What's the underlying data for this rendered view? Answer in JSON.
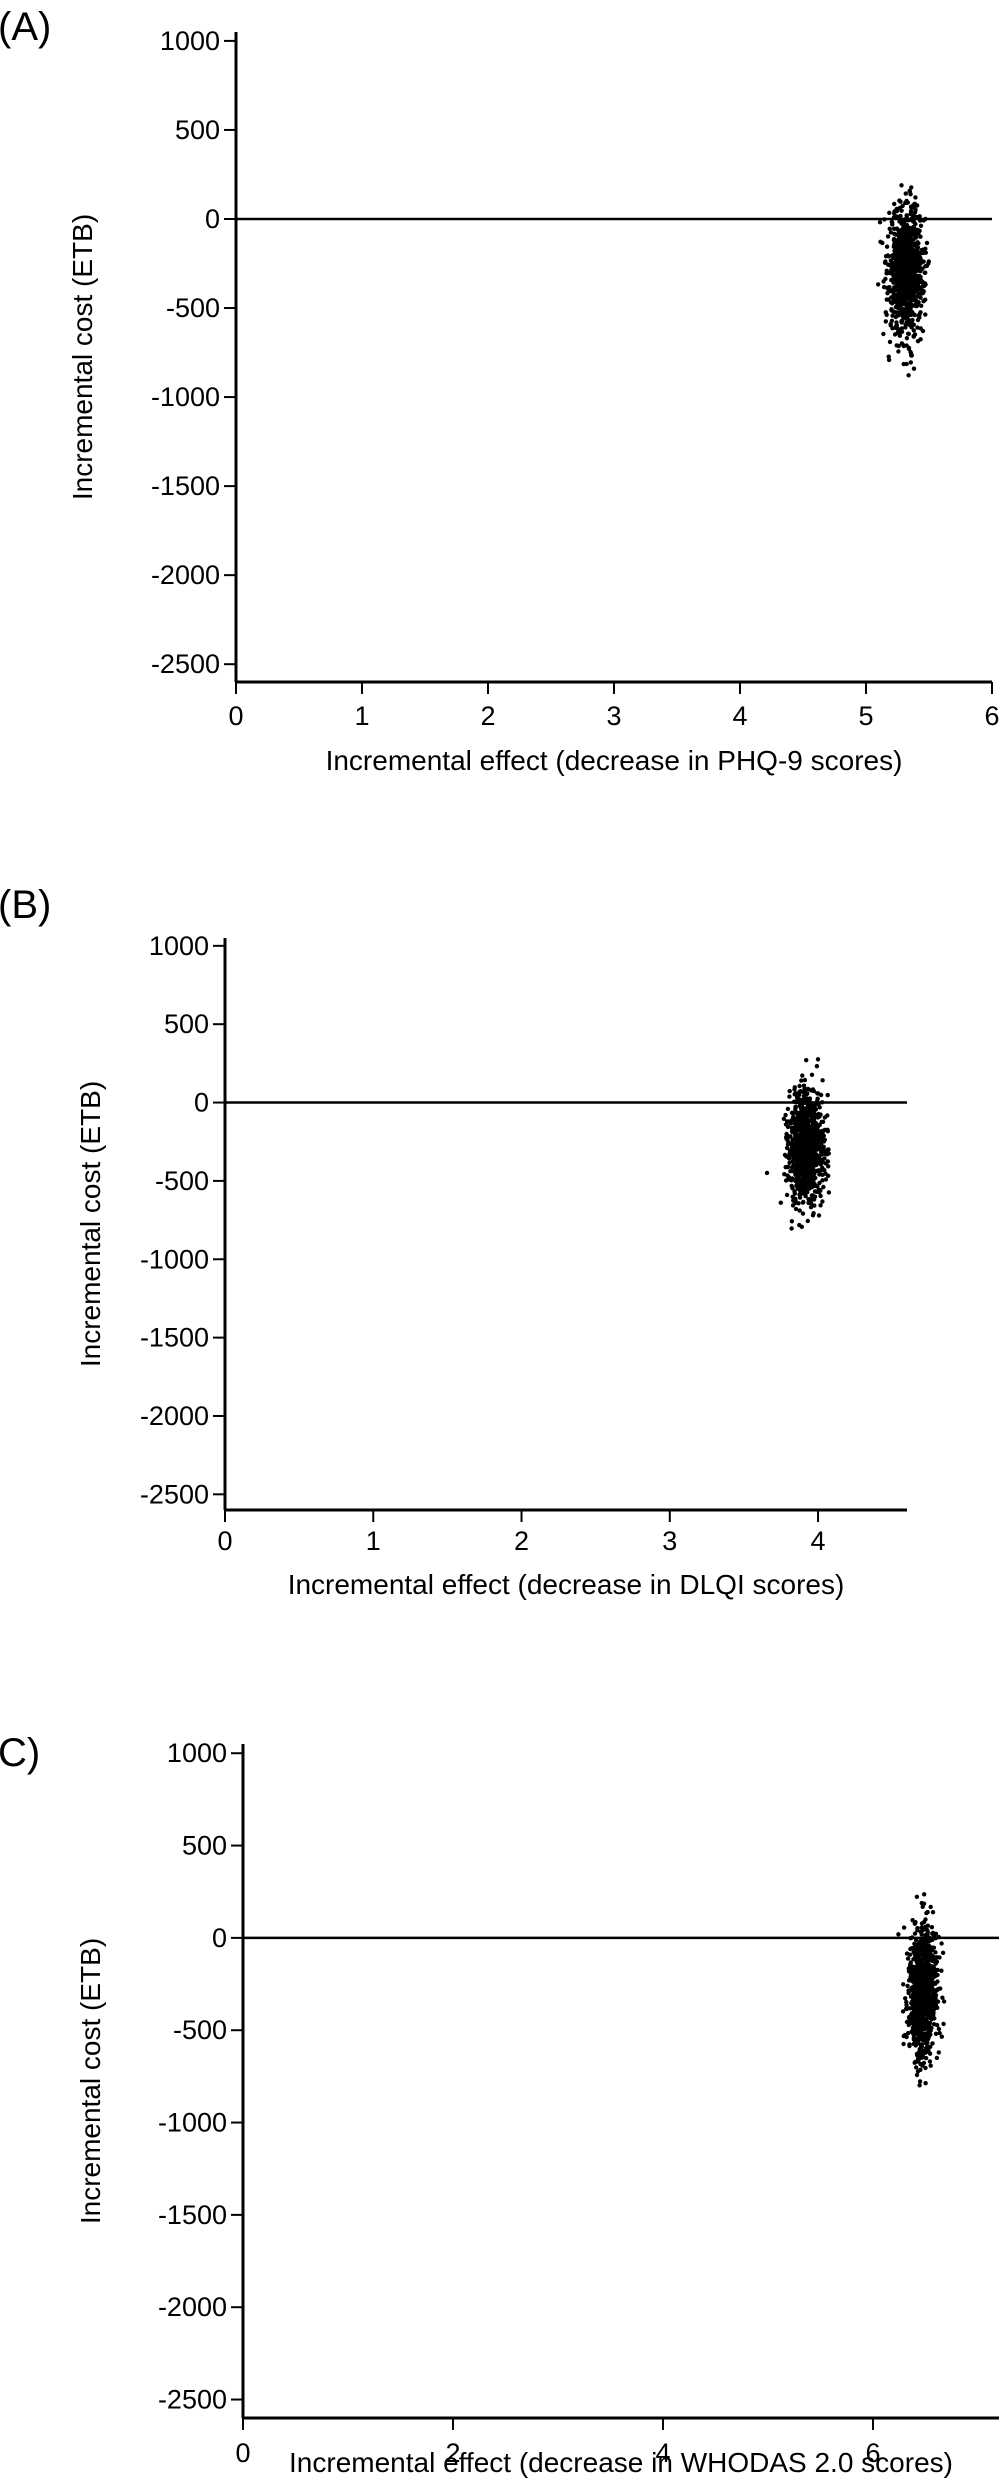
{
  "chart_data": [
    {
      "type": "scatter",
      "panel_label": "(A)",
      "xlabel": "Incremental effect (decrease in PHQ-9 scores)",
      "ylabel": "Incremental cost (ETB)",
      "xlim": [
        0,
        6
      ],
      "ylim": [
        -2600,
        1050
      ],
      "x_ticks": [
        0,
        1,
        2,
        3,
        4,
        5,
        6
      ],
      "y_ticks": [
        1000,
        500,
        0,
        -500,
        -1000,
        -1500,
        -2000,
        -2500
      ],
      "reference_lines": {
        "x": 0,
        "y": 0
      },
      "grid": false,
      "cloud": {
        "points": 1000,
        "x_mean": 5.32,
        "x_sd": 0.07,
        "y_mean": -290,
        "y_sd": 175,
        "x_range": [
          5.02,
          5.57
        ],
        "y_range": [
          -920,
          480
        ]
      }
    },
    {
      "type": "scatter",
      "panel_label": "(B)",
      "xlabel": "Incremental effect (decrease in DLQI scores)",
      "ylabel": "Incremental cost (ETB)",
      "xlim": [
        0,
        4.6
      ],
      "ylim": [
        -2600,
        1050
      ],
      "x_ticks": [
        0,
        1,
        2,
        3,
        4
      ],
      "y_ticks": [
        1000,
        500,
        0,
        -500,
        -1000,
        -1500,
        -2000,
        -2500
      ],
      "reference_lines": {
        "x": 0,
        "y": 0
      },
      "grid": false,
      "cloud": {
        "points": 1000,
        "x_mean": 3.92,
        "x_sd": 0.06,
        "y_mean": -290,
        "y_sd": 175,
        "x_range": [
          3.65,
          4.15
        ],
        "y_range": [
          -920,
          480
        ]
      }
    },
    {
      "type": "scatter",
      "panel_label": "C)",
      "xlabel": "Incremental effect (decrease in WHODAS 2.0 scores)",
      "ylabel": "Incremental cost (ETB)",
      "xlim": [
        0,
        7.2
      ],
      "ylim": [
        -2600,
        1050
      ],
      "x_ticks": [
        0,
        2,
        4,
        6
      ],
      "y_ticks": [
        1000,
        500,
        0,
        -500,
        -1000,
        -1500,
        -2000,
        -2500
      ],
      "reference_lines": {
        "x": 0,
        "y": 0
      },
      "grid": false,
      "cloud": {
        "points": 1000,
        "x_mean": 6.47,
        "x_sd": 0.07,
        "y_mean": -290,
        "y_sd": 175,
        "x_range": [
          6.1,
          6.75
        ],
        "y_range": [
          -920,
          480
        ]
      }
    }
  ]
}
